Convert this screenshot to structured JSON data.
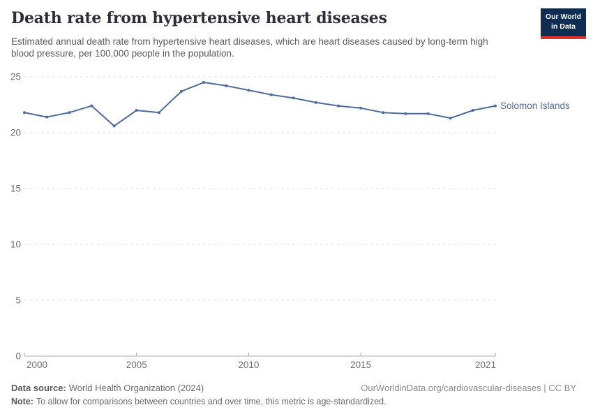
{
  "header": {
    "title": "Death rate from hypertensive heart diseases",
    "subtitle": "Estimated annual death rate from hypertensive heart diseases, which are heart diseases caused by long-term high blood pressure, per 100,000 people in the population."
  },
  "logo": {
    "line1": "Our World",
    "line2": "in Data",
    "bg_color": "#0F2C52",
    "accent_color": "#E0332B"
  },
  "chart_data": {
    "type": "line",
    "title": "Death rate from hypertensive heart diseases",
    "x": [
      2000,
      2001,
      2002,
      2003,
      2004,
      2005,
      2006,
      2007,
      2008,
      2009,
      2010,
      2011,
      2012,
      2013,
      2014,
      2015,
      2016,
      2017,
      2018,
      2019,
      2020,
      2021
    ],
    "series": [
      {
        "name": "Solomon Islands",
        "color": "#4C6A9C",
        "values": [
          21.8,
          21.4,
          21.8,
          22.4,
          20.6,
          22.0,
          21.8,
          23.7,
          24.5,
          24.2,
          23.8,
          23.4,
          23.1,
          22.7,
          22.4,
          22.2,
          21.8,
          21.7,
          21.7,
          21.3,
          22.0,
          22.4
        ]
      }
    ],
    "xlabel": "",
    "ylabel": "",
    "ylim": [
      0,
      25
    ],
    "yticks": [
      0,
      5,
      10,
      15,
      20,
      25
    ],
    "xticks": [
      2000,
      2005,
      2010,
      2015,
      2021
    ],
    "grid": "horizontal-dashed",
    "legend_position": "end-of-line"
  },
  "chart_style": {
    "line_color": "#4C6A9C",
    "grid_color": "#dcdcdc",
    "axis_color": "#a8a8a8",
    "tick_label_color": "#6e6e6e"
  },
  "footer": {
    "data_source_label": "Data source:",
    "data_source_text": "World Health Organization (2024)",
    "url_text": "OurWorldinData.org/cardiovascular-diseases | CC BY",
    "note_label": "Note:",
    "note_text": "To allow for comparisons between countries and over time, this metric is age-standardized."
  }
}
